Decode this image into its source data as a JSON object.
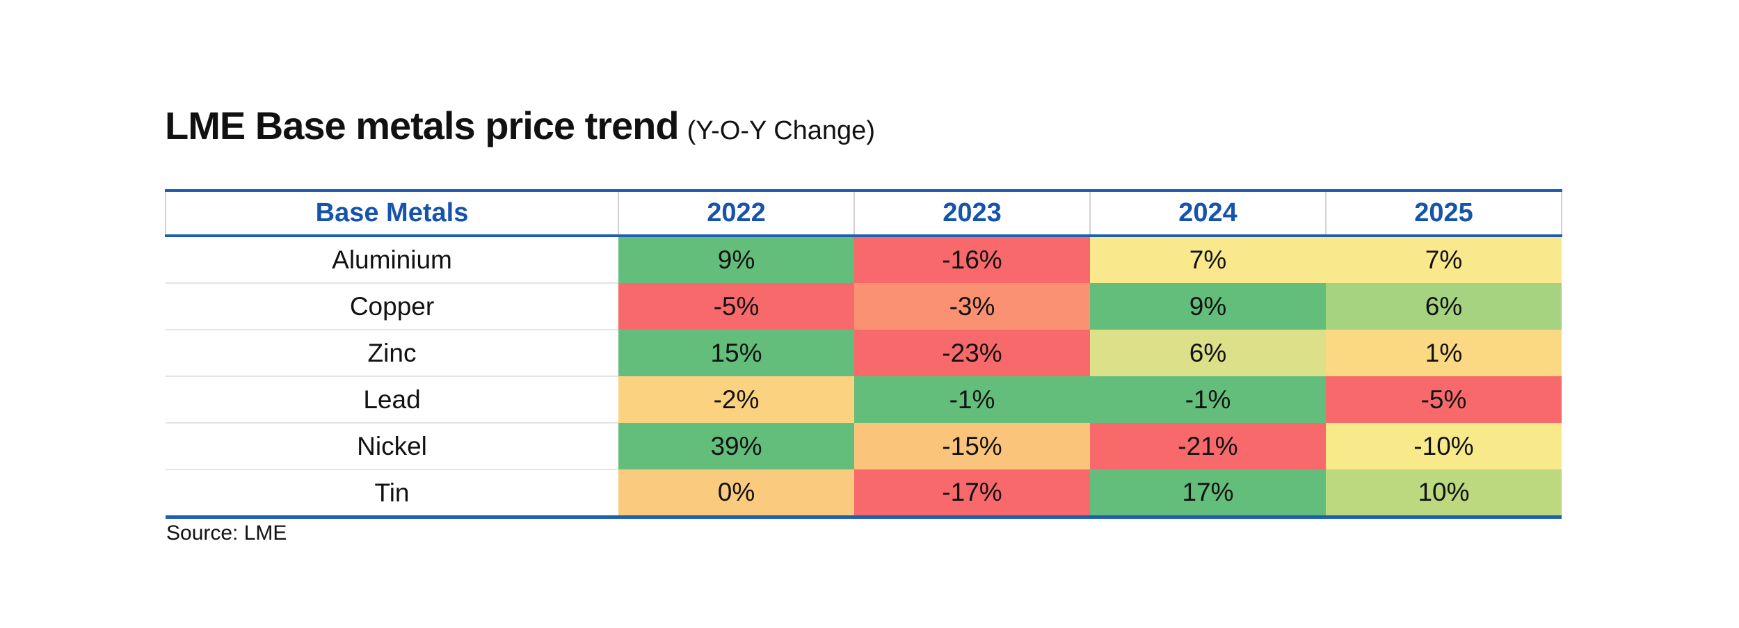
{
  "title": {
    "main": "LME Base metals price trend",
    "suffix": "(Y-O-Y Change)"
  },
  "source": "Source: LME",
  "colors": {
    "accent_blue": "#1553AD",
    "border_blue": "#1F5FAF",
    "separator_gray": "#d2d2d2",
    "scale_min_red": "#F8696B",
    "scale_mid_yellow": "#FFEB84",
    "scale_max_green": "#63BE7B",
    "text_black": "#111111",
    "background": "#ffffff"
  },
  "table": {
    "columns": [
      "Base Metals",
      "2022",
      "2023",
      "2024",
      "2025"
    ],
    "rows": [
      {
        "metal": "Aluminium",
        "cells": [
          {
            "value": "9%",
            "color": "#63BE7B"
          },
          {
            "value": "-16%",
            "color": "#F8696B"
          },
          {
            "value": "7%",
            "color": "#FAE98C"
          },
          {
            "value": "7%",
            "color": "#FAE98C"
          }
        ]
      },
      {
        "metal": "Copper",
        "cells": [
          {
            "value": "-5%",
            "color": "#F8696B"
          },
          {
            "value": "-3%",
            "color": "#FA9173"
          },
          {
            "value": "9%",
            "color": "#63BE7B"
          },
          {
            "value": "6%",
            "color": "#A6D37F"
          }
        ]
      },
      {
        "metal": "Zinc",
        "cells": [
          {
            "value": "15%",
            "color": "#63BE7B"
          },
          {
            "value": "-23%",
            "color": "#F8696B"
          },
          {
            "value": "6%",
            "color": "#DBE089"
          },
          {
            "value": "1%",
            "color": "#FBD983"
          }
        ]
      },
      {
        "metal": "Lead",
        "cells": [
          {
            "value": "-2%",
            "color": "#FBD280"
          },
          {
            "value": "-1%",
            "color": "#63BE7B"
          },
          {
            "value": "-1%",
            "color": "#63BE7B"
          },
          {
            "value": "-5%",
            "color": "#F8696B"
          }
        ]
      },
      {
        "metal": "Nickel",
        "cells": [
          {
            "value": "39%",
            "color": "#63BE7B"
          },
          {
            "value": "-15%",
            "color": "#FAC57B"
          },
          {
            "value": "-21%",
            "color": "#F8696B"
          },
          {
            "value": "-10%",
            "color": "#F8E98B"
          }
        ]
      },
      {
        "metal": "Tin",
        "cells": [
          {
            "value": "0%",
            "color": "#FACB7E"
          },
          {
            "value": "-17%",
            "color": "#F8696B"
          },
          {
            "value": "17%",
            "color": "#63BE7B"
          },
          {
            "value": "10%",
            "color": "#BCD980"
          }
        ]
      }
    ]
  },
  "chart_data": {
    "type": "table",
    "title": "LME Base metals price trend (Y-O-Y Change)",
    "categories": [
      "2022",
      "2023",
      "2024",
      "2025"
    ],
    "row_header": "Base Metals",
    "series": [
      {
        "name": "Aluminium",
        "values": [
          9,
          -16,
          7,
          7
        ]
      },
      {
        "name": "Copper",
        "values": [
          -5,
          -3,
          9,
          6
        ]
      },
      {
        "name": "Zinc",
        "values": [
          15,
          -23,
          6,
          1
        ]
      },
      {
        "name": "Lead",
        "values": [
          -2,
          -1,
          -1,
          -5
        ]
      },
      {
        "name": "Nickel",
        "values": [
          39,
          -15,
          -21,
          -10
        ]
      },
      {
        "name": "Tin",
        "values": [
          0,
          -17,
          17,
          10
        ]
      }
    ],
    "unit": "%",
    "color_scale": {
      "min": "#F8696B",
      "mid": "#FFEB84",
      "max": "#63BE7B",
      "scope": "per-row"
    },
    "source": "Source: LME"
  }
}
